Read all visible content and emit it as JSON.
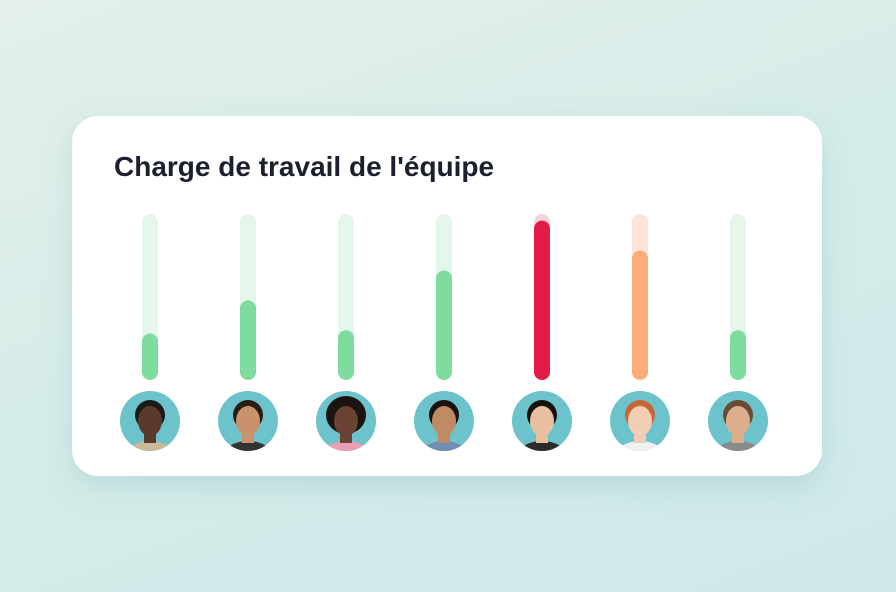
{
  "chart_data": {
    "type": "bar",
    "title": "Charge de travail de l'équipe",
    "values": [
      28,
      48,
      30,
      66,
      96,
      78,
      30
    ],
    "colors": [
      "#7edc9f",
      "#7edc9f",
      "#7edc9f",
      "#7edc9f",
      "#e31b46",
      "#fbac7a",
      "#7edc9f"
    ],
    "track_colors": [
      "#e5f7eb",
      "#e5f7eb",
      "#e5f7eb",
      "#e5f7eb",
      "#f6d3da",
      "#fde4d6",
      "#e5f7eb"
    ],
    "ylim": [
      0,
      100
    ]
  }
}
